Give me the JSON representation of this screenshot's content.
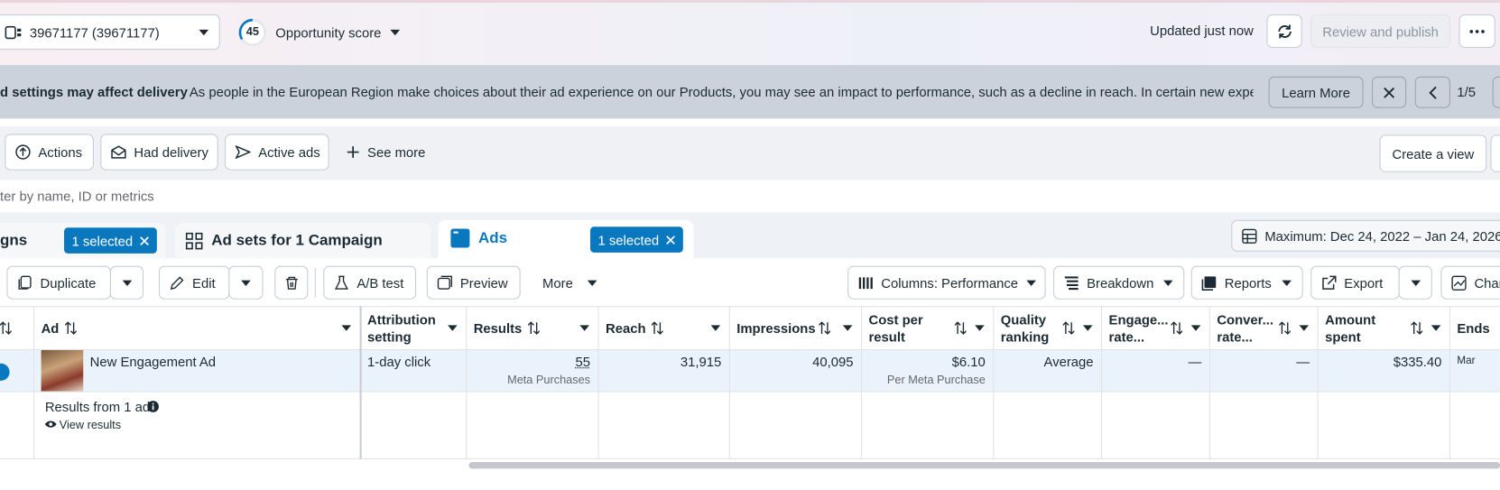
{
  "top_bar": {
    "account": "39671177 (39671177)",
    "score": "45",
    "score_label": "Opportunity score",
    "status": "Updated just now",
    "publish_button": "Review and publish"
  },
  "banner": {
    "title": "d settings may affect delivery",
    "message": "As people in the European Region make choices about their ad experience on our Products, you may see an impact to performance, such as a decline in reach. In certain new experience...",
    "button": "Learn More",
    "pager": "1/5"
  },
  "filters": {
    "buttons": [
      "Actions",
      "Had delivery",
      "Active ads",
      "See more"
    ],
    "create_view": "Create a view"
  },
  "search": {
    "placeholder": "ter by name, ID or metrics"
  },
  "tabs": {
    "campaigns": {
      "label": "gns",
      "selected": "1 selected"
    },
    "ad_sets": {
      "label": "Ad sets for 1 Campaign"
    },
    "ads": {
      "label": "Ads",
      "selected": "1 selected"
    },
    "date_range": "Maximum: Dec 24, 2022 – Jan 24, 2026"
  },
  "toolbar": {
    "left": [
      "Duplicate",
      "Edit",
      "A/B test",
      "Preview",
      "More"
    ],
    "right": [
      "Columns: Performance",
      "Breakdown",
      "Reports",
      "Export",
      "Char"
    ]
  },
  "table": {
    "headers": [
      "Ad",
      "Attribution setting",
      "Results",
      "Reach",
      "Impressions",
      "Cost per result",
      "Quality ranking",
      "Engage... rate...",
      "Conver... rate...",
      "Amount spent",
      "Ends"
    ],
    "rows": [
      [
        "New Engagement Ad",
        "1-day click",
        {
          "value": "55",
          "sub": "Meta Purchases"
        },
        "31,915",
        "40,095",
        {
          "value": "$6.10",
          "sub": "Per Meta Purchase"
        },
        "Average",
        "—",
        "—",
        "$335.40",
        "Mar"
      ]
    ]
  },
  "summary": {
    "title": "Results from 1 ad",
    "link": "View results"
  }
}
